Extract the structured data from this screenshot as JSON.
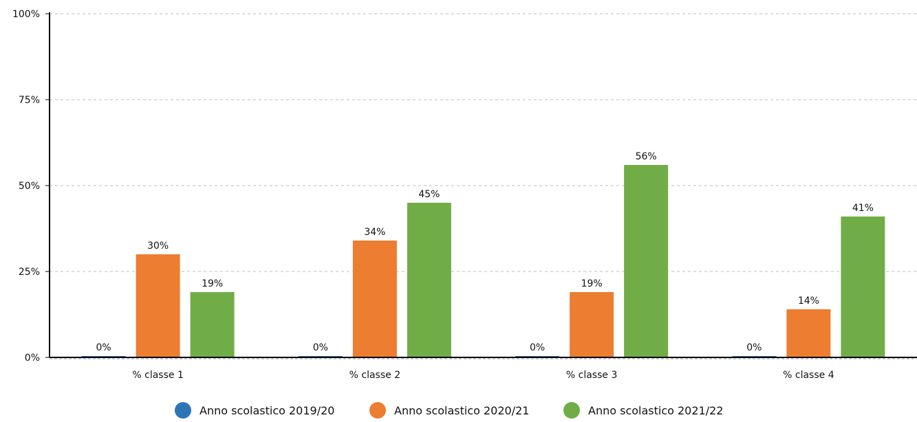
{
  "chart_data": {
    "type": "bar",
    "categories": [
      "% classe 1",
      "% classe 2",
      "% classe 3",
      "% classe 4"
    ],
    "series": [
      {
        "name": "Anno scolastico 2019/20",
        "color": "#2E75B6",
        "values": [
          0,
          0,
          0,
          0
        ],
        "labels": [
          "0%",
          "0%",
          "0%",
          "0%"
        ]
      },
      {
        "name": "Anno scolastico 2020/21",
        "color": "#ED7D31",
        "values": [
          30,
          34,
          19,
          14
        ],
        "labels": [
          "30%",
          "34%",
          "19%",
          "14%"
        ]
      },
      {
        "name": "Anno scolastico 2021/22",
        "color": "#70AD47",
        "values": [
          19,
          45,
          56,
          41
        ],
        "labels": [
          "19%",
          "45%",
          "56%",
          "41%"
        ]
      }
    ],
    "yticks": [
      0,
      25,
      50,
      75,
      100
    ],
    "ytick_labels": [
      "0%",
      "25%",
      "50%",
      "75%",
      "100%"
    ],
    "ylim": [
      0,
      100
    ],
    "grid": true,
    "legend_position": "bottom"
  }
}
